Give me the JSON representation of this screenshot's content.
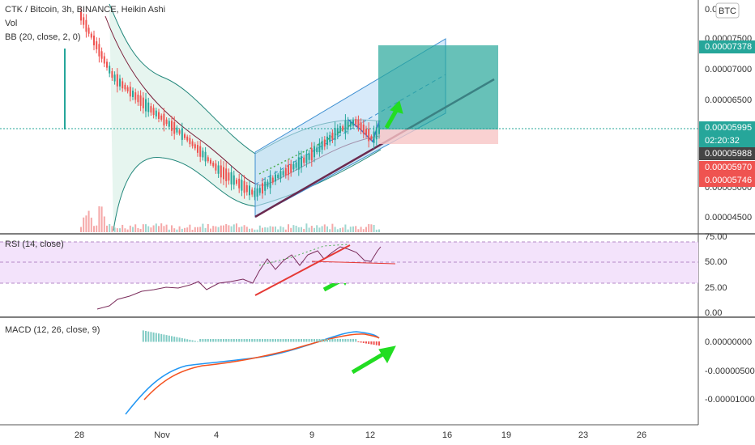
{
  "main_pane": {
    "legend": [
      "CTK / Bitcoin, 3h, BINANCE, Heikin Ashi",
      "Vol",
      "BB (20, close, 2, 0)"
    ],
    "currency": "BTC",
    "top_tick": "0.0(",
    "ticks": [
      "0.00007500",
      "0.00007000",
      "0.00006500",
      "0.00005000",
      "0.00004500"
    ],
    "tags": [
      "0.00007378",
      "0.00005995",
      "02:20:32",
      "0.00005988",
      "0.00005970",
      "0.00005746"
    ]
  },
  "rsi_pane": {
    "legend": "RSI (14, close)",
    "ticks": [
      "75.00",
      "50.00",
      "25.00",
      "0.00"
    ]
  },
  "macd_pane": {
    "legend": "MACD (12, 26, close, 9)",
    "ticks": [
      "0.00000000",
      "-0.00000500",
      "-0.00001000"
    ]
  },
  "time_axis": [
    "28",
    "Nov",
    "4",
    "9",
    "12",
    "16",
    "19",
    "23",
    "26"
  ]
}
